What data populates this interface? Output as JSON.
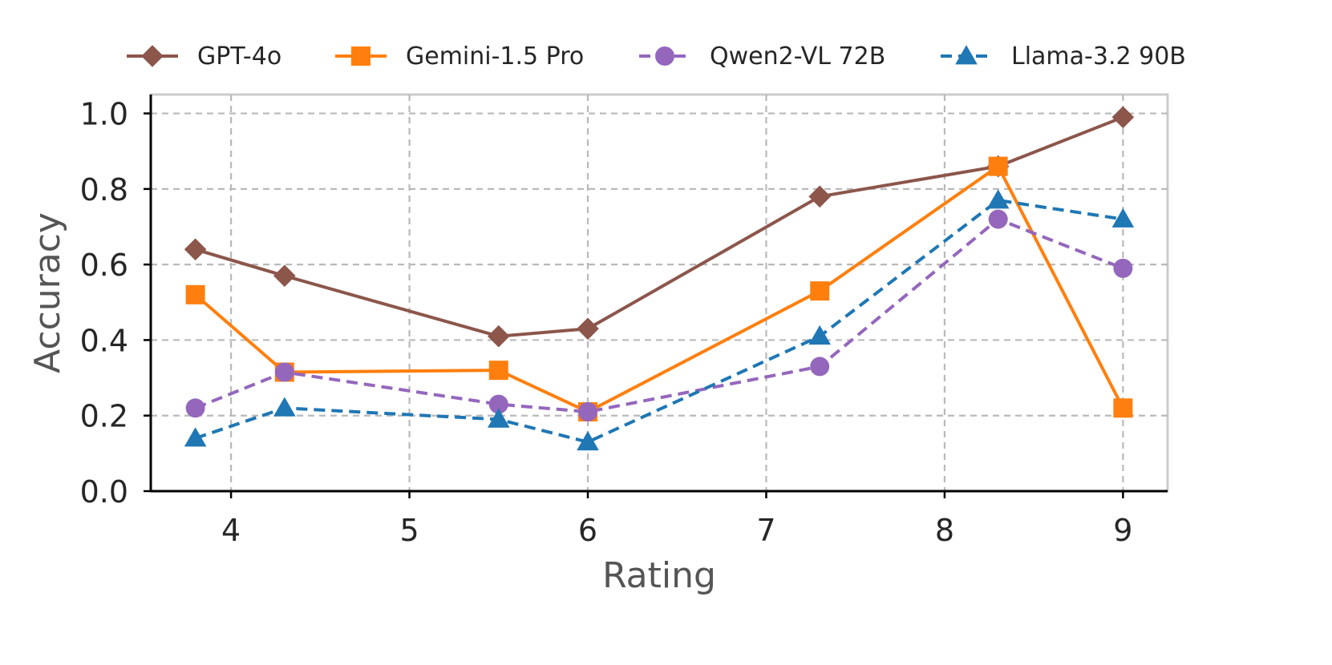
{
  "chart_data": {
    "type": "line",
    "title": "",
    "xlabel": "Rating",
    "ylabel": "Accuracy",
    "xlim": [
      3.55,
      9.25
    ],
    "ylim": [
      0.0,
      1.05
    ],
    "grid": true,
    "legend_position": "top",
    "xticks": [
      4,
      5,
      6,
      7,
      8,
      9
    ],
    "yticks": [
      0.0,
      0.2,
      0.4,
      0.6,
      0.8,
      1.0
    ],
    "xtick_labels": [
      "4",
      "5",
      "6",
      "7",
      "8",
      "9"
    ],
    "ytick_labels": [
      "0.0",
      "0.2",
      "0.4",
      "0.6",
      "0.8",
      "1.0"
    ],
    "series": [
      {
        "name": "GPT-4o",
        "color": "#8c564b",
        "marker": "diamond",
        "linestyle": "solid",
        "x": [
          3.8,
          4.3,
          5.5,
          6.0,
          7.3,
          8.3,
          9.0
        ],
        "y": [
          0.64,
          0.57,
          0.41,
          0.43,
          0.78,
          0.86,
          0.99
        ]
      },
      {
        "name": "Gemini-1.5 Pro",
        "color": "#ff7f0e",
        "marker": "square",
        "linestyle": "solid",
        "x": [
          3.8,
          4.3,
          5.5,
          6.0,
          7.3,
          8.3,
          9.0
        ],
        "y": [
          0.52,
          0.315,
          0.32,
          0.21,
          0.53,
          0.86,
          0.22
        ]
      },
      {
        "name": "Qwen2-VL 72B",
        "color": "#9467bd",
        "marker": "circle",
        "linestyle": "dashed",
        "x": [
          3.8,
          4.3,
          5.5,
          6.0,
          7.3,
          8.3,
          9.0
        ],
        "y": [
          0.22,
          0.315,
          0.23,
          0.21,
          0.33,
          0.72,
          0.59
        ]
      },
      {
        "name": "Llama-3.2 90B",
        "color": "#1f77b4",
        "marker": "triangle",
        "linestyle": "dashed",
        "x": [
          3.8,
          4.3,
          5.5,
          6.0,
          7.3,
          8.3,
          9.0
        ],
        "y": [
          0.14,
          0.22,
          0.19,
          0.13,
          0.41,
          0.77,
          0.72
        ]
      }
    ]
  }
}
